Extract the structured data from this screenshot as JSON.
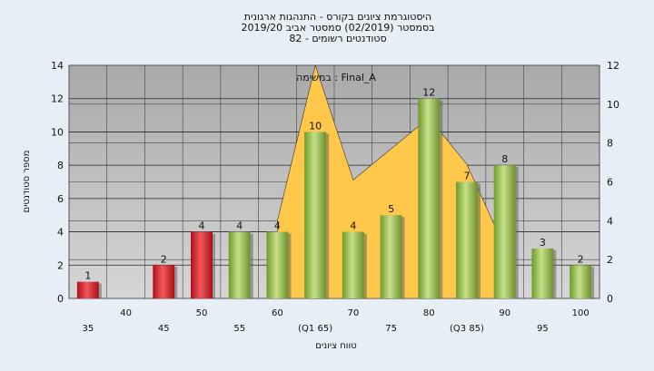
{
  "chart_data": {
    "type": "bar",
    "title_lines": [
      "היסטוגרמת ציונים בקורס - התנהגות ארגונית",
      "בסמסטר  (02/2019)  סמסטר אביב 2019/20",
      "סטודנטים רשומים - 82"
    ],
    "annotation": "במשימה : Final_A",
    "xlabel": "טווח ציונים",
    "ylabel": "מספר סטודנטים",
    "categories": [
      "35",
      "40",
      "45",
      "50",
      "55",
      "60",
      "65",
      "70",
      "75",
      "80",
      "85",
      "90",
      "95",
      "100"
    ],
    "x_tick_labels": [
      "35",
      "40",
      "45",
      "50",
      "55",
      "60",
      "(Q1 65)",
      "70",
      "75",
      "80",
      "(Q3 85)",
      "90",
      "95",
      "100"
    ],
    "values": [
      1,
      0,
      2,
      4,
      4,
      4,
      10,
      4,
      5,
      12,
      7,
      8,
      3,
      2
    ],
    "value_labels": [
      "1",
      "",
      "2",
      "4",
      "4",
      "4",
      "10",
      "4",
      "5",
      "12",
      "7",
      "8",
      "3",
      "2"
    ],
    "bar_colors": [
      "red",
      "none",
      "red",
      "red",
      "green",
      "green",
      "green",
      "green",
      "green",
      "green",
      "green",
      "green",
      "green",
      "green"
    ],
    "ylim": [
      0,
      14
    ],
    "yticks": [
      0,
      2,
      4,
      6,
      8,
      10,
      12,
      14
    ],
    "y2lim": [
      0,
      12
    ],
    "y2ticks": [
      0,
      2,
      4,
      6,
      8,
      10,
      12
    ],
    "background_area": {
      "x": [
        "60",
        "65",
        "70",
        "80",
        "85",
        "90"
      ],
      "y": [
        4,
        12.0,
        6.1,
        9.3,
        6.9,
        2.6
      ],
      "from": "60",
      "to": "90",
      "color": "#ffc84a"
    },
    "colors": {
      "red": "#d92027",
      "green": "#8fbf45",
      "plot_bg": "#b8b8b8",
      "page_bg": "#e8eef6"
    },
    "grid": true
  }
}
